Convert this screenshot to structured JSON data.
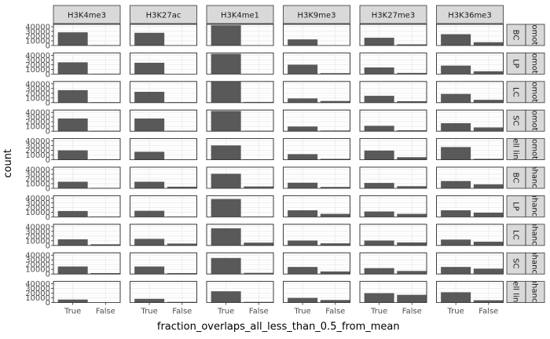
{
  "chart_data": {
    "type": "bar",
    "xlabel": "fraction_overlaps_all_less_than_0.5_from_mean",
    "ylabel": "count",
    "categories": [
      "True",
      "False"
    ],
    "ylim": [
      0,
      45000
    ],
    "yticks": [
      0,
      10000,
      20000,
      30000,
      40000
    ],
    "grid": true,
    "col_facets": [
      "H3K4me3",
      "H3K27ac",
      "H3K4me1",
      "H3K9me3",
      "H3K27me3",
      "H3K36me3"
    ],
    "row_facets": [
      {
        "cell": "BC",
        "group": "promoter"
      },
      {
        "cell": "LP",
        "group": "promoter"
      },
      {
        "cell": "LC",
        "group": "promoter"
      },
      {
        "cell": "SC",
        "group": "promoter"
      },
      {
        "cell": "cell line",
        "group": "promoter"
      },
      {
        "cell": "BC",
        "group": "enhancer"
      },
      {
        "cell": "LP",
        "group": "enhancer"
      },
      {
        "cell": "LC",
        "group": "enhancer"
      },
      {
        "cell": "SC",
        "group": "enhancer"
      },
      {
        "cell": "cell line",
        "group": "enhancer"
      }
    ],
    "values": [
      [
        [
          28000,
          900
        ],
        [
          27000,
          600
        ],
        [
          43000,
          700
        ],
        [
          13000,
          700
        ],
        [
          16500,
          2500
        ],
        [
          24000,
          7000
        ]
      ],
      [
        [
          25000,
          900
        ],
        [
          24000,
          600
        ],
        [
          43000,
          700
        ],
        [
          20000,
          2000
        ],
        [
          14000,
          2500
        ],
        [
          18000,
          6000
        ]
      ],
      [
        [
          26500,
          900
        ],
        [
          23000,
          1000
        ],
        [
          45000,
          1500
        ],
        [
          9000,
          3500
        ],
        [
          14500,
          3000
        ],
        [
          18500,
          6000
        ]
      ],
      [
        [
          27000,
          900
        ],
        [
          27000,
          800
        ],
        [
          43000,
          1000
        ],
        [
          10000,
          1500
        ],
        [
          11500,
          2000
        ],
        [
          17000,
          8000
        ]
      ],
      [
        [
          20000,
          1000
        ],
        [
          17000,
          600
        ],
        [
          30500,
          900
        ],
        [
          12000,
          2000
        ],
        [
          19500,
          5500
        ],
        [
          27000,
          2000
        ]
      ],
      [
        [
          14000,
          1000
        ],
        [
          14000,
          3500
        ],
        [
          31000,
          4000
        ],
        [
          12000,
          3000
        ],
        [
          11500,
          4500
        ],
        [
          15500,
          8500
        ]
      ],
      [
        [
          12500,
          1000
        ],
        [
          13000,
          1000
        ],
        [
          38000,
          1000
        ],
        [
          14000,
          6500
        ],
        [
          11500,
          6500
        ],
        [
          14000,
          9000
        ]
      ],
      [
        [
          13000,
          2500
        ],
        [
          14000,
          4000
        ],
        [
          36500,
          6000
        ],
        [
          10500,
          4500
        ],
        [
          10500,
          6500
        ],
        [
          12500,
          8000
        ]
      ],
      [
        [
          16000,
          2000
        ],
        [
          16000,
          2000
        ],
        [
          34000,
          2500
        ],
        [
          15000,
          5500
        ],
        [
          12500,
          6500
        ],
        [
          15000,
          11500
        ]
      ],
      [
        [
          6500,
          300
        ],
        [
          8000,
          1500
        ],
        [
          24000,
          1500
        ],
        [
          10000,
          5500
        ],
        [
          20000,
          16500
        ],
        [
          22000,
          5000
        ]
      ]
    ]
  }
}
